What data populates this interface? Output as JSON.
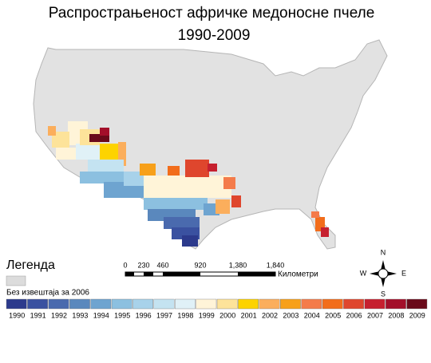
{
  "header": {
    "title": "Распрострањеност афричке медоносне пчеле",
    "subtitle": "1990-2009"
  },
  "legend": {
    "title": "Легенда",
    "no_report": {
      "label": "Без извештаја за 2006",
      "color": "#dcdcdc"
    },
    "items": [
      {
        "label": "1990",
        "color": "#2c3a8c"
      },
      {
        "label": "1991",
        "color": "#3a51a0"
      },
      {
        "label": "1992",
        "color": "#4a6aae"
      },
      {
        "label": "1993",
        "color": "#5a88bd"
      },
      {
        "label": "1994",
        "color": "#6ea4d0"
      },
      {
        "label": "1995",
        "color": "#8cc0e0"
      },
      {
        "label": "1996",
        "color": "#a8d2ea"
      },
      {
        "label": "1997",
        "color": "#c4e3f1"
      },
      {
        "label": "1998",
        "color": "#e0f1f7"
      },
      {
        "label": "1999",
        "color": "#fff4d8"
      },
      {
        "label": "2000",
        "color": "#fde39a"
      },
      {
        "label": "2001",
        "color": "#fdd300"
      },
      {
        "label": "2002",
        "color": "#fbae5c"
      },
      {
        "label": "2003",
        "color": "#f7a01a"
      },
      {
        "label": "2004",
        "color": "#f47b4a"
      },
      {
        "label": "2005",
        "color": "#f26d1b"
      },
      {
        "label": "2006",
        "color": "#df462d"
      },
      {
        "label": "2007",
        "color": "#c6202f"
      },
      {
        "label": "2008",
        "color": "#a30f2a"
      },
      {
        "label": "2009",
        "color": "#6a0a1a"
      }
    ]
  },
  "scale": {
    "labels": [
      "0",
      "230",
      "460",
      "920",
      "1,380",
      "1,840"
    ],
    "unit": "Километри"
  },
  "compass": {
    "n": "N",
    "s": "S",
    "e": "E",
    "w": "W"
  }
}
